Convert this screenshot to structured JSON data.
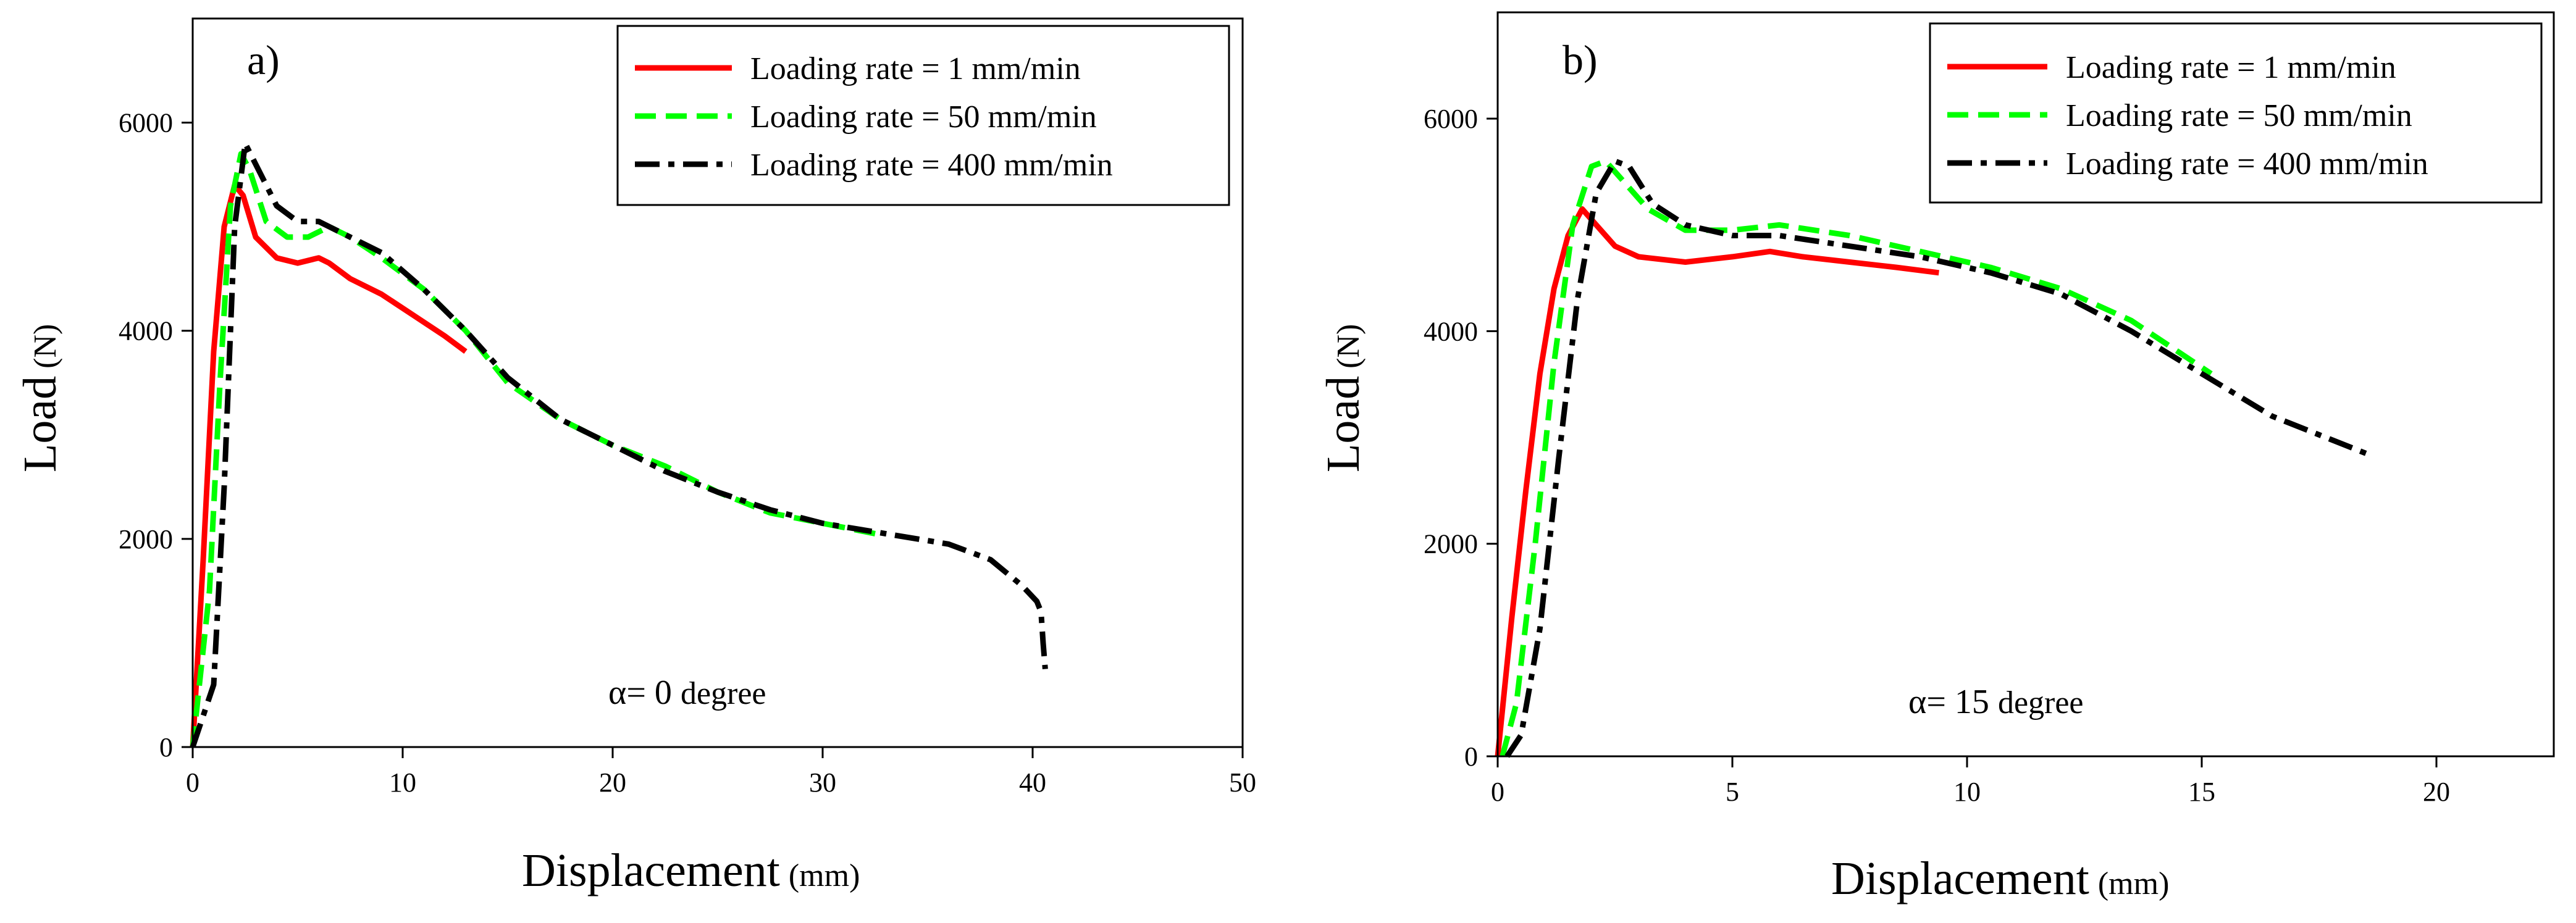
{
  "colors": {
    "axis": "#000000",
    "series_1": "#ff0000",
    "series_2": "#00ff00",
    "series_3": "#000000"
  },
  "chart_data": [
    {
      "type": "line",
      "panel_label": "a)",
      "xlabel": "Displacement",
      "xlabel_unit": "(mm)",
      "ylabel": "Load",
      "ylabel_unit": "(N)",
      "xlim": [
        0,
        50
      ],
      "ylim": [
        0,
        7000
      ],
      "x_ticks": [
        0,
        10,
        20,
        30,
        40,
        50
      ],
      "y_ticks": [
        0,
        2000,
        4000,
        6000
      ],
      "y_tick_labels": [
        "0",
        "2000",
        "4000",
        "6000"
      ],
      "annotation_symbol": "α",
      "annotation_value": "= 0",
      "annotation_unit": "degree",
      "legend": [
        "Loading rate = 1 mm/min",
        "Loading rate = 50 mm/min",
        "Loading rate = 400 mm/min"
      ],
      "series": [
        {
          "name": "Loading rate = 1 mm/min",
          "x": [
            0,
            0.5,
            1.0,
            1.5,
            2.0,
            2.4,
            3.0,
            4.0,
            5.0,
            6.0,
            6.5,
            7.5,
            9.0,
            10.5,
            12.0,
            13.0
          ],
          "y": [
            0,
            1800,
            3800,
            5000,
            5400,
            5300,
            4900,
            4700,
            4650,
            4700,
            4650,
            4500,
            4350,
            4150,
            3950,
            3800
          ]
        },
        {
          "name": "Loading rate = 50 mm/min",
          "x": [
            0,
            0.8,
            1.3,
            1.8,
            2.3,
            2.7,
            3.5,
            4.5,
            5.5,
            6.5,
            7.5,
            9.0,
            11.0,
            13.0,
            15.0,
            17.5,
            20.0,
            22.5,
            25.0,
            27.5,
            30.0,
            32.5
          ],
          "y": [
            0,
            1500,
            3500,
            5200,
            5700,
            5550,
            5050,
            4900,
            4900,
            5000,
            4900,
            4700,
            4400,
            4000,
            3500,
            3150,
            2900,
            2700,
            2450,
            2250,
            2150,
            2050
          ]
        },
        {
          "name": "Loading rate = 400 mm/min",
          "x": [
            0,
            1.0,
            1.5,
            2.0,
            2.5,
            3.0,
            4.0,
            5.0,
            6.0,
            7.0,
            9.0,
            11.0,
            13.0,
            15.0,
            17.5,
            20.0,
            22.5,
            25.0,
            27.5,
            30.0,
            33.0,
            36.0,
            38.0,
            39.5,
            40.2,
            40.4,
            40.5,
            40.6
          ],
          "y": [
            0,
            600,
            2500,
            5000,
            5800,
            5600,
            5200,
            5050,
            5050,
            4950,
            4750,
            4400,
            4000,
            3550,
            3150,
            2900,
            2650,
            2450,
            2280,
            2150,
            2050,
            1950,
            1800,
            1550,
            1400,
            1300,
            1000,
            750
          ]
        }
      ]
    },
    {
      "type": "line",
      "panel_label": "b)",
      "xlabel": "Displacement",
      "xlabel_unit": "(mm)",
      "ylabel": "Load",
      "ylabel_unit": "(N)",
      "xlim": [
        0,
        22.5
      ],
      "ylim": [
        0,
        7000
      ],
      "x_ticks": [
        0,
        5,
        10,
        15,
        20
      ],
      "y_ticks": [
        0,
        2000,
        4000,
        6000
      ],
      "y_tick_labels": [
        "0",
        "2000",
        "4000",
        "6000"
      ],
      "annotation_symbol": "α",
      "annotation_value": "= 15",
      "annotation_unit": "degree",
      "legend": [
        "Loading rate = 1 mm/min",
        "Loading rate = 50 mm/min",
        "Loading rate = 400 mm/min"
      ],
      "series": [
        {
          "name": "Loading rate = 1 mm/min",
          "x": [
            0,
            0.3,
            0.6,
            0.9,
            1.2,
            1.5,
            1.8,
            2.1,
            2.5,
            3.0,
            4.0,
            5.0,
            5.8,
            6.5,
            7.5,
            8.5,
            9.4
          ],
          "y": [
            0,
            1300,
            2500,
            3600,
            4400,
            4900,
            5150,
            5000,
            4800,
            4700,
            4650,
            4700,
            4750,
            4700,
            4650,
            4600,
            4550
          ]
        },
        {
          "name": "Loading rate = 50 mm/min",
          "x": [
            0.1,
            0.4,
            0.8,
            1.2,
            1.6,
            2.0,
            2.3,
            2.7,
            3.2,
            4.0,
            5.0,
            6.0,
            7.5,
            9.0,
            10.5,
            12.0,
            13.5,
            15.2
          ],
          "y": [
            0,
            500,
            2000,
            3700,
            5000,
            5550,
            5600,
            5400,
            5150,
            4950,
            4950,
            5000,
            4900,
            4750,
            4600,
            4400,
            4100,
            3600
          ]
        },
        {
          "name": "Loading rate = 400 mm/min",
          "x": [
            0.2,
            0.5,
            0.9,
            1.3,
            1.7,
            2.1,
            2.5,
            2.8,
            3.3,
            4.0,
            5.0,
            6.0,
            7.5,
            9.0,
            10.5,
            12.0,
            13.5,
            15.0,
            16.5,
            18.5
          ],
          "y": [
            0,
            200,
            1200,
            2800,
            4300,
            5300,
            5600,
            5550,
            5200,
            5000,
            4900,
            4900,
            4800,
            4700,
            4550,
            4350,
            4000,
            3600,
            3200,
            2850
          ]
        }
      ]
    }
  ]
}
